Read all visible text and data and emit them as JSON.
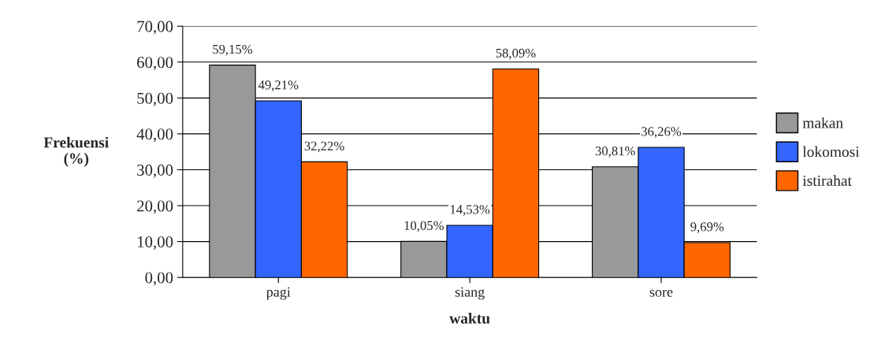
{
  "chart_data": {
    "type": "bar",
    "categories": [
      "pagi",
      "siang",
      "sore"
    ],
    "xlabel": "waktu",
    "ylabel": "Frekuensi\n(%)",
    "series": [
      {
        "name": "makan",
        "color": "#999999",
        "values": [
          59.15,
          10.05,
          30.81
        ],
        "value_labels": [
          "59,15%",
          "10,05%",
          "30,81%"
        ]
      },
      {
        "name": "lokomosi",
        "color": "#3366ff",
        "values": [
          49.21,
          14.53,
          36.26
        ],
        "value_labels": [
          "49,21%",
          "14,53%",
          "36,26%"
        ]
      },
      {
        "name": "istirahat",
        "color": "#ff6600",
        "values": [
          32.22,
          58.09,
          9.69
        ],
        "value_labels": [
          "32,22%",
          "58,09%",
          "9,69%"
        ]
      }
    ],
    "ylim": [
      0,
      70
    ],
    "yticks": [
      {
        "value": 0,
        "label": "0,00"
      },
      {
        "value": 10,
        "label": "10,00"
      },
      {
        "value": 20,
        "label": "20,00"
      },
      {
        "value": 30,
        "label": "30,00"
      },
      {
        "value": 40,
        "label": "40,00"
      },
      {
        "value": 50,
        "label": "50,00"
      },
      {
        "value": 60,
        "label": "60,00"
      },
      {
        "value": 70,
        "label": "70,00"
      }
    ],
    "grid": "y",
    "legend": "right"
  }
}
